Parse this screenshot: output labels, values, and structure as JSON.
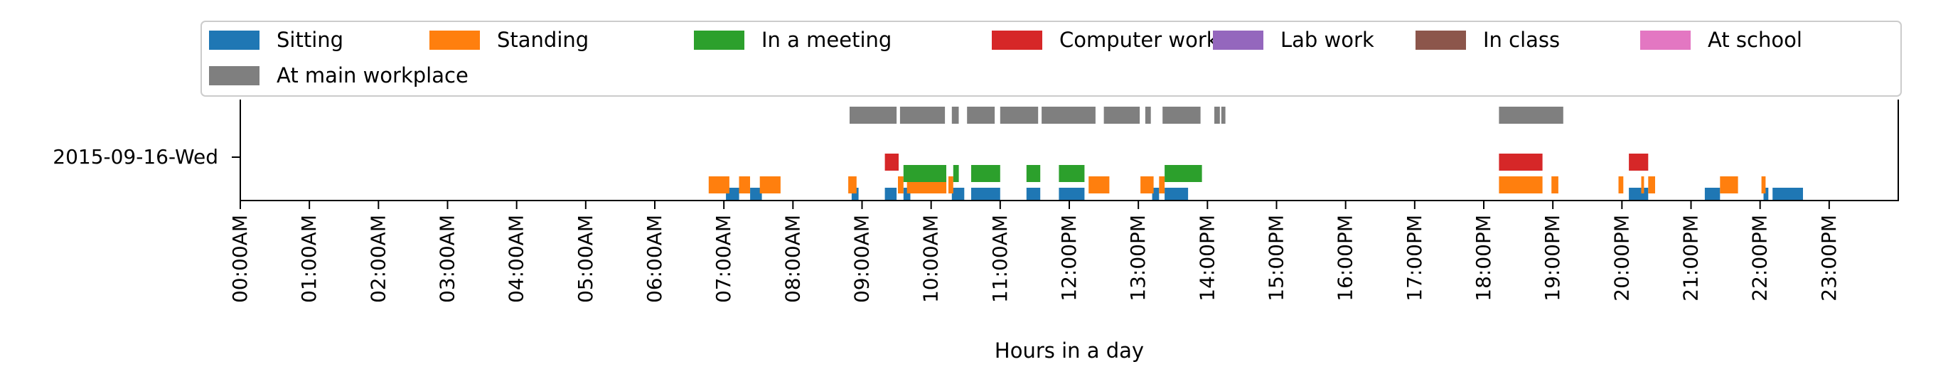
{
  "chart_data": {
    "type": "timeline",
    "xlabel": "Hours in a day",
    "xlim": [
      0,
      24
    ],
    "row_label": "2015-09-16-Wed",
    "tick_labels": [
      "00:00AM",
      "01:00AM",
      "02:00AM",
      "03:00AM",
      "04:00AM",
      "05:00AM",
      "06:00AM",
      "07:00AM",
      "08:00AM",
      "09:00AM",
      "10:00AM",
      "11:00AM",
      "12:00PM",
      "13:00PM",
      "14:00PM",
      "15:00PM",
      "16:00PM",
      "17:00PM",
      "18:00PM",
      "19:00PM",
      "20:00PM",
      "21:00PM",
      "22:00PM",
      "23:00PM"
    ],
    "legend_location": "top",
    "series": [
      {
        "name": "Sitting",
        "color": "#1f77b4",
        "intervals": [
          [
            7.03,
            7.22
          ],
          [
            7.38,
            7.55
          ],
          [
            8.85,
            8.95
          ],
          [
            9.33,
            9.5
          ],
          [
            9.6,
            9.7
          ],
          [
            10.3,
            10.48
          ],
          [
            10.58,
            11.0
          ],
          [
            11.38,
            11.58
          ],
          [
            11.85,
            12.22
          ],
          [
            13.2,
            13.3
          ],
          [
            13.38,
            13.72
          ],
          [
            20.1,
            20.38
          ],
          [
            21.2,
            21.42
          ],
          [
            22.05,
            22.12
          ],
          [
            22.18,
            22.62
          ]
        ]
      },
      {
        "name": "Standing",
        "color": "#ff7f0e",
        "intervals": [
          [
            6.78,
            7.08
          ],
          [
            7.22,
            7.38
          ],
          [
            7.52,
            7.82
          ],
          [
            8.8,
            8.92
          ],
          [
            9.52,
            9.6
          ],
          [
            9.65,
            10.22
          ],
          [
            10.25,
            10.32
          ],
          [
            12.28,
            12.58
          ],
          [
            13.03,
            13.22
          ],
          [
            13.3,
            13.38
          ],
          [
            18.22,
            18.85
          ],
          [
            18.98,
            19.08
          ],
          [
            19.95,
            20.02
          ],
          [
            20.28,
            20.32
          ],
          [
            20.38,
            20.48
          ],
          [
            21.42,
            21.68
          ],
          [
            22.02,
            22.08
          ]
        ]
      },
      {
        "name": "In a meeting",
        "color": "#2ca02c",
        "intervals": [
          [
            9.6,
            10.22
          ],
          [
            10.32,
            10.4
          ],
          [
            10.58,
            11.0
          ],
          [
            11.38,
            11.58
          ],
          [
            11.85,
            12.22
          ],
          [
            13.38,
            13.92
          ]
        ]
      },
      {
        "name": "Computer work",
        "color": "#d62728",
        "intervals": [
          [
            9.33,
            9.53
          ],
          [
            18.22,
            18.85
          ],
          [
            20.1,
            20.38
          ]
        ]
      },
      {
        "name": "Lab work",
        "color": "#9467bd",
        "intervals": []
      },
      {
        "name": "In class",
        "color": "#8c564b",
        "intervals": []
      },
      {
        "name": "At school",
        "color": "#e377c2",
        "intervals": []
      },
      {
        "name": "At main workplace",
        "color": "#7f7f7f",
        "intervals": [
          [
            8.82,
            9.5
          ],
          [
            9.55,
            10.2
          ],
          [
            10.3,
            10.4
          ],
          [
            10.52,
            10.92
          ],
          [
            11.0,
            11.55
          ],
          [
            11.6,
            12.38
          ],
          [
            12.5,
            13.02
          ],
          [
            13.1,
            13.18
          ],
          [
            13.35,
            13.9
          ],
          [
            14.1,
            14.18
          ],
          [
            14.2,
            14.26
          ],
          [
            18.22,
            19.15
          ]
        ]
      }
    ]
  }
}
